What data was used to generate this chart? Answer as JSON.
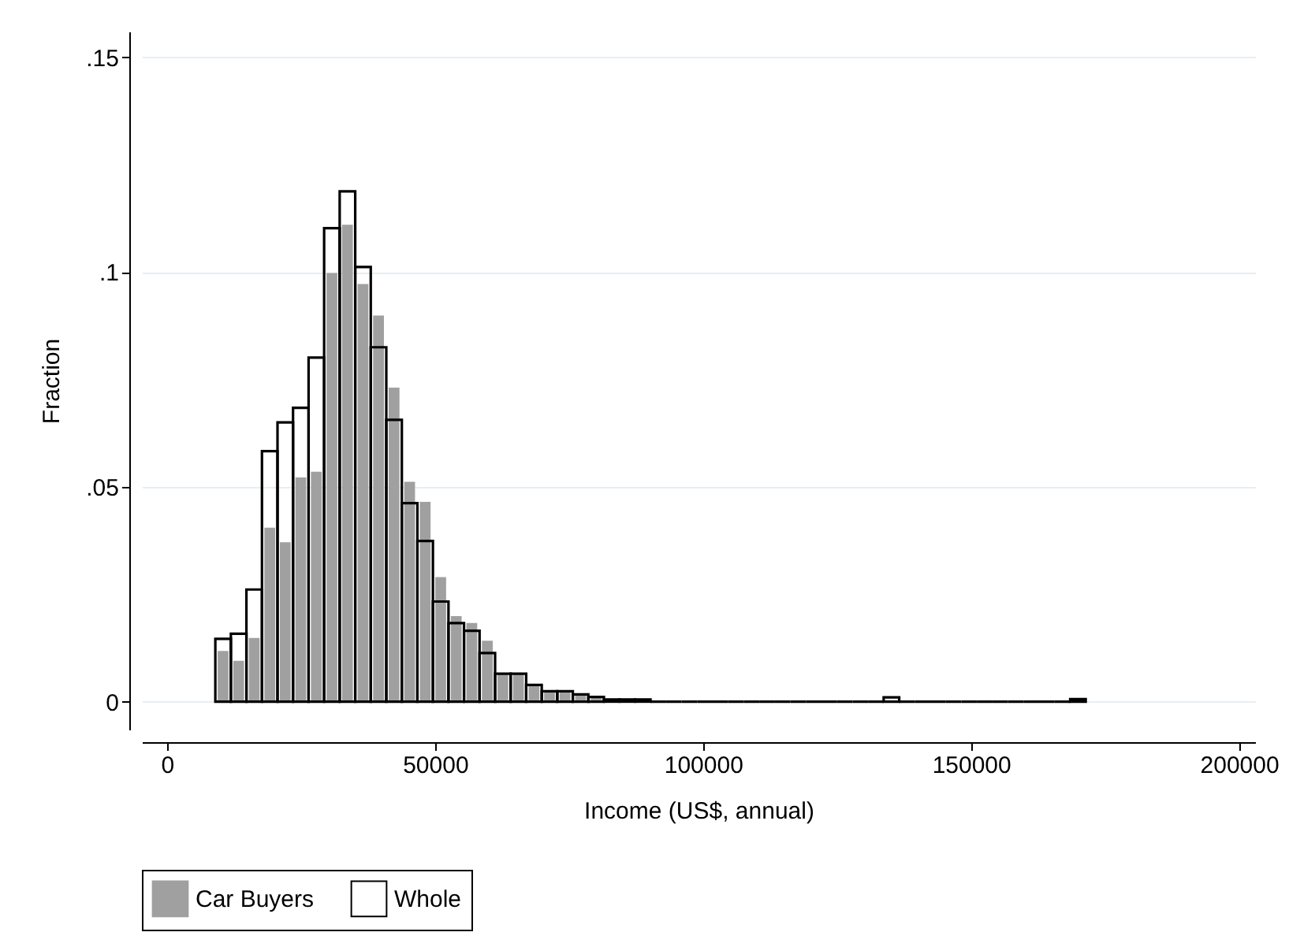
{
  "chart_data": {
    "type": "histogram",
    "xlabel": "Income (US$, annual)",
    "ylabel": "Fraction",
    "bins": [
      9000,
      11900,
      14800,
      17700,
      20600,
      23500,
      26400,
      29300,
      32200,
      35100,
      38000,
      40900,
      43800,
      46700,
      49600,
      52500,
      55400,
      58300,
      61200,
      64100,
      67000,
      69900,
      72800,
      75700,
      78600,
      81500,
      84400,
      87300,
      90200,
      93100,
      96000,
      98900,
      101800,
      104700,
      107600,
      110500,
      113400,
      116300,
      119200,
      122100,
      125000,
      127900,
      130800,
      133700,
      136600,
      139500,
      142400,
      145300,
      148200,
      151100,
      154000,
      156900,
      159800,
      162700,
      165600,
      168500,
      171400
    ],
    "series": [
      {
        "name": "Car Buyers",
        "color": "#a0a0a0",
        "values": [
          0.0118,
          0.0095,
          0.0148,
          0.0405,
          0.0371,
          0.0522,
          0.0535,
          0.0998,
          0.111,
          0.0972,
          0.0899,
          0.0731,
          0.0512,
          0.0465,
          0.029,
          0.0199,
          0.0183,
          0.0142,
          0.0065,
          0.0065,
          0.0039,
          0.0024,
          0.0022,
          0.0015,
          0.001,
          0.0005,
          0.0005,
          0.0005,
          0,
          0,
          0,
          0,
          0,
          0,
          0,
          0,
          0,
          0,
          0,
          0,
          0,
          0,
          0,
          null,
          0,
          0,
          0,
          0,
          0,
          0,
          0,
          0,
          0,
          0,
          0,
          0
        ]
      },
      {
        "name": "Whole",
        "color": "#000000",
        "values": [
          0.0146,
          0.0158,
          0.0261,
          0.0583,
          0.065,
          0.0684,
          0.0801,
          0.1102,
          0.1188,
          0.1012,
          0.0825,
          0.0656,
          0.0462,
          0.0374,
          0.0233,
          0.0183,
          0.0165,
          0.0113,
          0.0065,
          0.0065,
          0.0039,
          0.0024,
          0.0024,
          0.0017,
          0.0011,
          0.0005,
          0.0005,
          0.0005,
          0,
          0,
          0,
          0,
          0,
          0,
          0,
          0,
          0,
          0,
          0,
          0,
          0,
          0,
          0,
          0.001,
          0,
          0,
          0,
          0,
          0,
          0,
          0,
          0,
          0,
          0,
          0,
          0.0006
        ]
      }
    ],
    "xlim": [
      -4700,
      203000
    ],
    "xticks": [
      0,
      50000,
      100000,
      150000,
      200000
    ],
    "ylim": [
      -0.0065,
      0.156
    ],
    "yticks": [
      {
        "value": 0,
        "label": "0"
      },
      {
        "value": 0.05,
        "label": ".05"
      },
      {
        "value": 0.1,
        "label": ".1"
      },
      {
        "value": 0.15,
        "label": ".15"
      }
    ],
    "grid": "y",
    "legend": "bottom"
  }
}
